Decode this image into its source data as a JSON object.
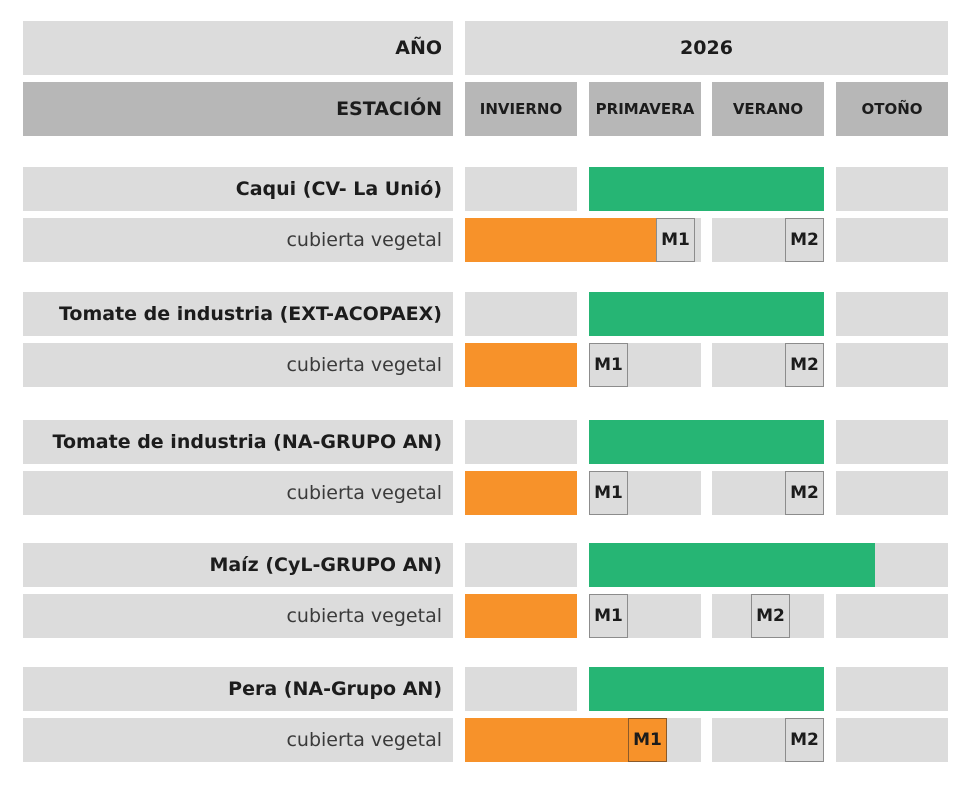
{
  "header": {
    "year_label": "AÑO",
    "year_value": "2026",
    "season_label": "ESTACIÓN",
    "seasons": [
      "INVIERNO",
      "PRIMAVERA",
      "VERANO",
      "OTOÑO"
    ]
  },
  "colors": {
    "crop_cycle": "#26b574",
    "cover_crop": "#f7922a",
    "background": "#dcdcdc",
    "header_dark": "#b7b7b7"
  },
  "chart_data": {
    "type": "gantt",
    "x_unit": "season",
    "x_range": [
      0,
      4
    ],
    "rows": [
      {
        "crop": "Caqui (CV- La Unió)",
        "crop_cycle": [
          1,
          3
        ],
        "cover_label": "cubierta vegetal",
        "cover_cycle": [
          0,
          1.6
        ],
        "markers": [
          {
            "label": "M1",
            "start": 1.6,
            "end": 1.95
          },
          {
            "label": "M2",
            "start": 2.65,
            "end": 3.0
          }
        ]
      },
      {
        "crop": "Tomate de industria (EXT-ACOPAEX)",
        "crop_cycle": [
          1,
          3
        ],
        "cover_label": "cubierta vegetal",
        "cover_cycle": [
          0,
          1
        ],
        "markers": [
          {
            "label": "M1",
            "start": 1.0,
            "end": 1.35
          },
          {
            "label": "M2",
            "start": 2.65,
            "end": 3.0
          }
        ]
      },
      {
        "crop": "Tomate de industria (NA-GRUPO AN)",
        "crop_cycle": [
          1,
          3
        ],
        "cover_label": "cubierta vegetal",
        "cover_cycle": [
          0,
          1
        ],
        "markers": [
          {
            "label": "M1",
            "start": 1.0,
            "end": 1.35
          },
          {
            "label": "M2",
            "start": 2.65,
            "end": 3.0
          }
        ]
      },
      {
        "crop": "Maíz (CyL-GRUPO AN)",
        "crop_cycle": [
          1,
          3.35
        ],
        "cover_label": "cubierta vegetal",
        "cover_cycle": [
          0,
          1
        ],
        "markers": [
          {
            "label": "M1",
            "start": 1.0,
            "end": 1.35
          },
          {
            "label": "M2",
            "start": 2.35,
            "end": 2.7
          }
        ]
      },
      {
        "crop": "Pera (NA-Grupo AN)",
        "crop_cycle": [
          1,
          3
        ],
        "cover_label": "cubierta vegetal",
        "cover_cycle": [
          0,
          1.35
        ],
        "markers": [
          {
            "label": "M1",
            "start": 1.35,
            "end": 1.7,
            "highlight": true
          },
          {
            "label": "M2",
            "start": 2.65,
            "end": 3.0
          }
        ]
      }
    ]
  }
}
